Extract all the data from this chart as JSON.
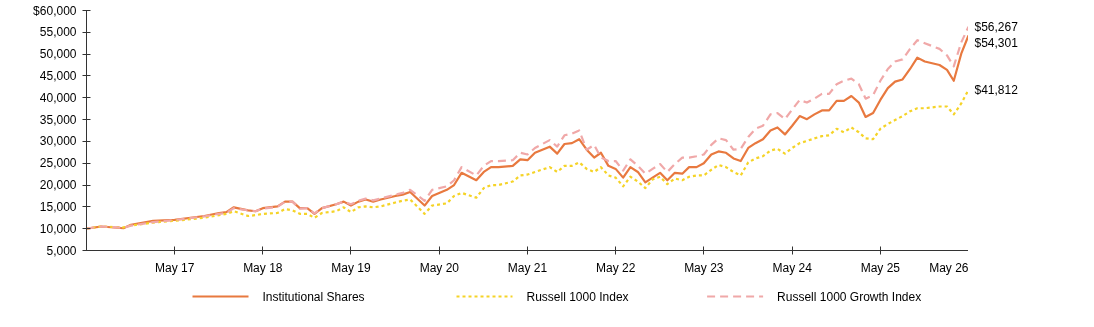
{
  "chart_data": {
    "type": "line",
    "x": [
      "2016-05",
      "2016-07",
      "2016-10",
      "2016-11",
      "2017-02",
      "2017-05",
      "2017-09",
      "2017-11",
      "2017-12",
      "2018-01",
      "2018-03",
      "2018-04",
      "2018-05",
      "2018-07",
      "2018-08",
      "2018-09",
      "2018-10",
      "2018-11",
      "2018-12",
      "2019-01",
      "2019-03",
      "2019-04",
      "2019-05",
      "2019-06",
      "2019-07",
      "2019-08",
      "2019-09",
      "2019-11",
      "2019-12",
      "2020-01",
      "2020-03",
      "2020-04",
      "2020-06",
      "2020-07",
      "2020-08",
      "2020-10",
      "2020-11",
      "2020-12",
      "2021-01",
      "2021-03",
      "2021-04",
      "2021-05",
      "2021-06",
      "2021-08",
      "2021-09",
      "2021-10",
      "2021-11",
      "2021-12",
      "2022-01",
      "2022-02",
      "2022-03",
      "2022-04",
      "2022-05",
      "2022-06",
      "2022-07",
      "2022-08",
      "2022-09",
      "2022-10",
      "2022-11",
      "2022-12",
      "2023-01",
      "2023-02",
      "2023-03",
      "2023-04",
      "2023-05",
      "2023-06",
      "2023-07",
      "2023-08",
      "2023-09",
      "2023-10",
      "2023-11",
      "2023-12",
      "2024-01",
      "2024-02",
      "2024-03",
      "2024-04",
      "2024-05",
      "2024-06",
      "2024-07",
      "2024-08",
      "2024-09",
      "2024-10",
      "2024-11",
      "2024-12",
      "2025-01",
      "2025-02",
      "2025-03",
      "2025-04",
      "2025-05",
      "2025-06",
      "2025-07",
      "2025-08",
      "2025-09",
      "2025-10",
      "2025-11",
      "2026-01",
      "2026-02",
      "2026-03",
      "2026-04",
      "2026-05"
    ],
    "series": [
      {
        "name": "Institutional Shares",
        "color": "#e8793f",
        "line_style": "solid",
        "values": [
          10000,
          10500,
          10100,
          10900,
          11800,
          12000,
          12900,
          13600,
          13800,
          14900,
          14200,
          14000,
          14700,
          15100,
          16200,
          16200,
          14700,
          14700,
          13400,
          14700,
          15600,
          16200,
          15300,
          16200,
          16700,
          16200,
          16700,
          17500,
          17800,
          18400,
          15300,
          17500,
          18900,
          20000,
          22800,
          21100,
          23000,
          24100,
          24100,
          24400,
          25900,
          25700,
          27400,
          28800,
          27200,
          29400,
          29600,
          30500,
          28100,
          26300,
          27400,
          24400,
          23700,
          21700,
          24100,
          23000,
          20600,
          21700,
          22800,
          21100,
          22800,
          22600,
          24100,
          24100,
          25000,
          27000,
          27700,
          27400,
          26100,
          25500,
          28500,
          29600,
          30500,
          32500,
          33200,
          31600,
          33600,
          35800,
          35100,
          36200,
          37100,
          37100,
          39300,
          39300,
          40400,
          38900,
          35600,
          36500,
          39500,
          42200,
          43700,
          44200,
          46600,
          49200,
          48300,
          47500,
          46400,
          43900,
          50100,
          54301
        ]
      },
      {
        "name": "Russell 1000 Index",
        "color": "#f5d327",
        "line_style": "dotted",
        "values": [
          10000,
          10500,
          10300,
          10700,
          11400,
          11800,
          12500,
          13100,
          13400,
          14000,
          12900,
          13100,
          13400,
          13600,
          14500,
          14200,
          13400,
          13400,
          12500,
          13600,
          14000,
          14900,
          13800,
          14900,
          15100,
          14900,
          15100,
          16000,
          16400,
          16700,
          13400,
          15300,
          15800,
          17500,
          18200,
          17100,
          19300,
          20000,
          20000,
          20800,
          22200,
          22400,
          23000,
          24100,
          23000,
          24400,
          24400,
          25200,
          23700,
          23000,
          24100,
          22200,
          21700,
          19700,
          21900,
          20800,
          19300,
          21300,
          21900,
          20200,
          21500,
          21100,
          21900,
          22200,
          22200,
          23500,
          24600,
          24100,
          23000,
          22200,
          25200,
          26100,
          26600,
          27900,
          28300,
          27200,
          28500,
          29600,
          30100,
          30700,
          31200,
          31400,
          32900,
          32100,
          33200,
          32100,
          30700,
          30500,
          32900,
          34000,
          34900,
          35800,
          36900,
          37600,
          37600,
          38000,
          38000,
          36200,
          38700,
          41812
        ]
      },
      {
        "name": "Russell 1000 Growth Index",
        "color": "#f0a8a8",
        "line_style": "dashed",
        "values": [
          10000,
          10500,
          10200,
          10700,
          11500,
          12000,
          12800,
          13400,
          13600,
          14700,
          14200,
          14000,
          14600,
          15000,
          16200,
          16200,
          14600,
          14700,
          13500,
          14700,
          15600,
          16200,
          15600,
          16400,
          16900,
          16500,
          16900,
          17800,
          18200,
          18900,
          16400,
          18900,
          19700,
          21100,
          24100,
          22200,
          24400,
          25500,
          25500,
          25700,
          27400,
          27000,
          28500,
          30300,
          28800,
          31400,
          31800,
          32500,
          28100,
          29200,
          26300,
          25500,
          25500,
          23300,
          25900,
          24400,
          22600,
          23700,
          24800,
          23000,
          24800,
          26300,
          26300,
          26600,
          27000,
          29200,
          30700,
          30300,
          28100,
          28300,
          31000,
          32900,
          33600,
          36200,
          36500,
          35100,
          37300,
          39500,
          38900,
          39800,
          40900,
          40900,
          43100,
          43900,
          44400,
          43100,
          39800,
          40600,
          43900,
          46600,
          48300,
          48800,
          51200,
          53200,
          52500,
          51200,
          49700,
          47200,
          52700,
          56267
        ]
      }
    ],
    "annotations": [
      {
        "text": "$56,267",
        "x": "2026-05",
        "y": 56267
      },
      {
        "text": "$54,301",
        "x": "2026-05",
        "y": 54301
      },
      {
        "text": "$41,812",
        "x": "2026-05",
        "y": 41812
      }
    ],
    "xlim": [
      "2016-05",
      "2026-05"
    ],
    "xticks": [
      {
        "value": "2017-05",
        "label": "May 17"
      },
      {
        "value": "2018-05",
        "label": "May 18"
      },
      {
        "value": "2019-05",
        "label": "May 19"
      },
      {
        "value": "2020-05",
        "label": "May 20"
      },
      {
        "value": "2021-05",
        "label": "May 21"
      },
      {
        "value": "2022-05",
        "label": "May 22"
      },
      {
        "value": "2023-05",
        "label": "May 23"
      },
      {
        "value": "2024-05",
        "label": "May 24"
      },
      {
        "value": "2025-05",
        "label": "May 25"
      },
      {
        "value": "2026-05",
        "label": "May 26"
      }
    ],
    "ylim": [
      5000,
      60000
    ],
    "yticks": [
      {
        "value": 5000,
        "label": "5,000"
      },
      {
        "value": 10000,
        "label": "10,000"
      },
      {
        "value": 15000,
        "label": "15,000"
      },
      {
        "value": 20000,
        "label": "20,000"
      },
      {
        "value": 25000,
        "label": "25,000"
      },
      {
        "value": 30000,
        "label": "30,000"
      },
      {
        "value": 35000,
        "label": "35,000"
      },
      {
        "value": 40000,
        "label": "40,000"
      },
      {
        "value": 45000,
        "label": "45,000"
      },
      {
        "value": 50000,
        "label": "50,000"
      },
      {
        "value": 55000,
        "label": "55,000"
      },
      {
        "value": 60000,
        "label": "$60,000"
      }
    ],
    "grid": false,
    "legend": "bottom",
    "marker": "none"
  }
}
